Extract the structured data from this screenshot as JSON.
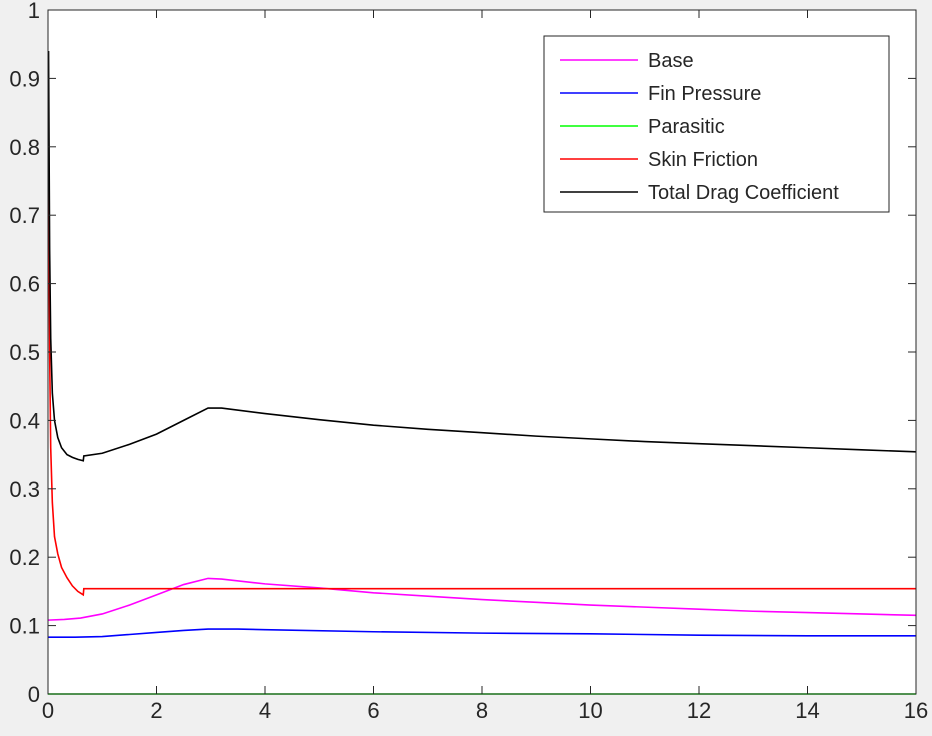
{
  "chart_data": {
    "type": "line",
    "title": "",
    "xlabel": "",
    "ylabel": "",
    "xlim": [
      0,
      16
    ],
    "ylim": [
      0,
      1
    ],
    "xticks": [
      "0",
      "2",
      "4",
      "6",
      "8",
      "10",
      "12",
      "14",
      "16"
    ],
    "yticks": [
      "0",
      "0.1",
      "0.2",
      "0.3",
      "0.4",
      "0.5",
      "0.6",
      "0.7",
      "0.8",
      "0.9",
      "1"
    ],
    "grid": false,
    "legend_position": "top-right",
    "series": [
      {
        "name": "Base",
        "color": "#ff00ff",
        "points": [
          [
            0,
            0.108
          ],
          [
            0.3,
            0.109
          ],
          [
            0.6,
            0.111
          ],
          [
            1.0,
            0.117
          ],
          [
            1.5,
            0.13
          ],
          [
            2.0,
            0.145
          ],
          [
            2.5,
            0.16
          ],
          [
            2.95,
            0.169
          ],
          [
            3.2,
            0.168
          ],
          [
            4,
            0.161
          ],
          [
            5,
            0.155
          ],
          [
            6,
            0.148
          ],
          [
            7,
            0.143
          ],
          [
            8,
            0.138
          ],
          [
            9,
            0.134
          ],
          [
            10,
            0.13
          ],
          [
            11,
            0.127
          ],
          [
            12,
            0.124
          ],
          [
            13,
            0.121
          ],
          [
            14,
            0.119
          ],
          [
            15,
            0.117
          ],
          [
            16,
            0.115
          ]
        ]
      },
      {
        "name": "Fin Pressure",
        "color": "#0000ff",
        "points": [
          [
            0,
            0.083
          ],
          [
            0.5,
            0.083
          ],
          [
            1.0,
            0.084
          ],
          [
            1.5,
            0.087
          ],
          [
            2.0,
            0.09
          ],
          [
            2.5,
            0.093
          ],
          [
            2.95,
            0.095
          ],
          [
            3.5,
            0.095
          ],
          [
            4,
            0.094
          ],
          [
            6,
            0.091
          ],
          [
            8,
            0.089
          ],
          [
            10,
            0.088
          ],
          [
            12,
            0.086
          ],
          [
            14,
            0.085
          ],
          [
            16,
            0.085
          ]
        ]
      },
      {
        "name": "Parasitic",
        "color": "#00ff00",
        "points": [
          [
            0,
            0
          ],
          [
            16,
            0
          ]
        ]
      },
      {
        "name": "Skin Friction",
        "color": "#ff0000",
        "points": [
          [
            0.01,
            0.78
          ],
          [
            0.03,
            0.5
          ],
          [
            0.05,
            0.36
          ],
          [
            0.08,
            0.28
          ],
          [
            0.12,
            0.23
          ],
          [
            0.18,
            0.205
          ],
          [
            0.25,
            0.185
          ],
          [
            0.35,
            0.17
          ],
          [
            0.45,
            0.158
          ],
          [
            0.55,
            0.15
          ],
          [
            0.65,
            0.145
          ],
          [
            0.66,
            0.154
          ],
          [
            2,
            0.154
          ],
          [
            4,
            0.154
          ],
          [
            6,
            0.154
          ],
          [
            8,
            0.154
          ],
          [
            10,
            0.154
          ],
          [
            12,
            0.154
          ],
          [
            14,
            0.154
          ],
          [
            16,
            0.154
          ]
        ]
      },
      {
        "name": "Total Drag Coefficient",
        "color": "#000000",
        "points": [
          [
            0.01,
            0.94
          ],
          [
            0.03,
            0.65
          ],
          [
            0.05,
            0.52
          ],
          [
            0.08,
            0.44
          ],
          [
            0.12,
            0.4
          ],
          [
            0.18,
            0.375
          ],
          [
            0.25,
            0.36
          ],
          [
            0.35,
            0.35
          ],
          [
            0.45,
            0.346
          ],
          [
            0.55,
            0.343
          ],
          [
            0.65,
            0.341
          ],
          [
            0.66,
            0.348
          ],
          [
            1.0,
            0.352
          ],
          [
            1.5,
            0.365
          ],
          [
            2.0,
            0.38
          ],
          [
            2.5,
            0.4
          ],
          [
            2.95,
            0.418
          ],
          [
            3.2,
            0.418
          ],
          [
            4,
            0.41
          ],
          [
            5,
            0.401
          ],
          [
            6,
            0.393
          ],
          [
            7,
            0.387
          ],
          [
            8,
            0.382
          ],
          [
            9,
            0.377
          ],
          [
            10,
            0.373
          ],
          [
            11,
            0.369
          ],
          [
            12,
            0.366
          ],
          [
            13,
            0.363
          ],
          [
            14,
            0.36
          ],
          [
            15,
            0.357
          ],
          [
            16,
            0.354
          ]
        ]
      }
    ]
  }
}
